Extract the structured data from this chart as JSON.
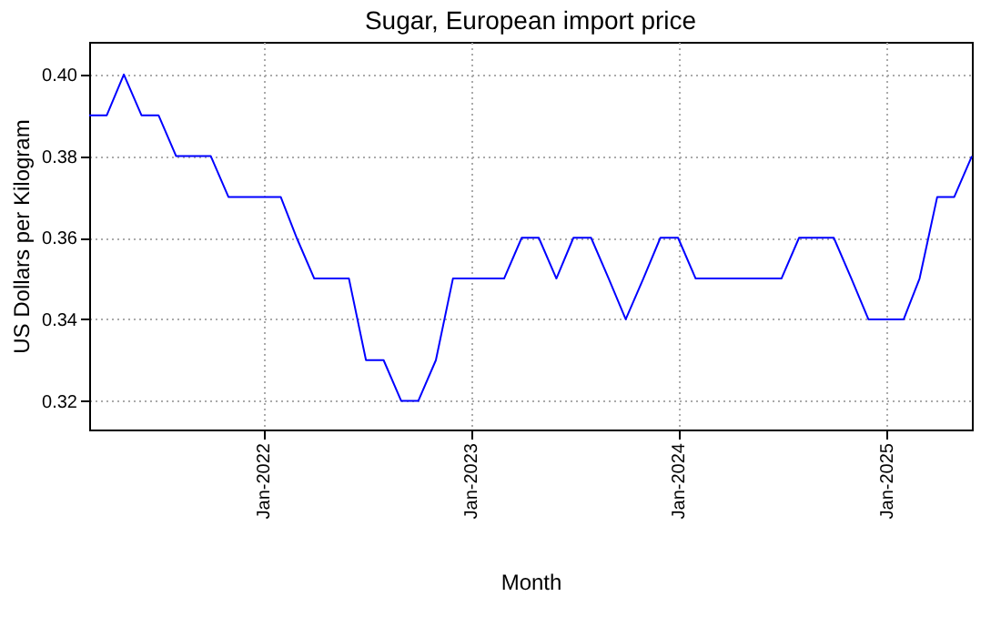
{
  "chart_data": {
    "type": "line",
    "title": "Sugar, European import price",
    "xlabel": "Month",
    "ylabel": "US Dollars per Kilogram",
    "x": [
      "2021-03",
      "2021-04",
      "2021-05",
      "2021-06",
      "2021-07",
      "2021-08",
      "2021-09",
      "2021-10",
      "2021-11",
      "2021-12",
      "2022-01",
      "2022-02",
      "2022-03",
      "2022-04",
      "2022-05",
      "2022-06",
      "2022-07",
      "2022-08",
      "2022-09",
      "2022-10",
      "2022-11",
      "2022-12",
      "2023-01",
      "2023-02",
      "2023-03",
      "2023-04",
      "2023-05",
      "2023-06",
      "2023-07",
      "2023-08",
      "2023-09",
      "2023-10",
      "2023-11",
      "2023-12",
      "2024-01",
      "2024-02",
      "2024-03",
      "2024-04",
      "2024-05",
      "2024-06",
      "2024-07",
      "2024-08",
      "2024-09",
      "2024-10",
      "2024-11",
      "2024-12",
      "2025-01",
      "2025-02",
      "2025-03",
      "2025-04",
      "2025-05",
      "2025-06"
    ],
    "series": [
      {
        "color": "#0000ff",
        "values": [
          0.39,
          0.39,
          0.4,
          0.39,
          0.39,
          0.38,
          0.38,
          0.38,
          0.37,
          0.37,
          0.37,
          0.37,
          0.36,
          0.35,
          0.35,
          0.35,
          0.33,
          0.33,
          0.32,
          0.32,
          0.33,
          0.35,
          0.35,
          0.35,
          0.35,
          0.36,
          0.36,
          0.35,
          0.36,
          0.36,
          0.35,
          0.34,
          0.35,
          0.36,
          0.36,
          0.35,
          0.35,
          0.35,
          0.35,
          0.35,
          0.35,
          0.36,
          0.36,
          0.36,
          0.35,
          0.34,
          0.34,
          0.34,
          0.35,
          0.37,
          0.37,
          0.38
        ]
      }
    ],
    "xlim": [
      "2021-03",
      "2025-06"
    ],
    "xticks": [
      {
        "value": "2022-01",
        "label": "Jan-2022"
      },
      {
        "value": "2023-01",
        "label": "Jan-2023"
      },
      {
        "value": "2024-01",
        "label": "Jan-2024"
      },
      {
        "value": "2025-01",
        "label": "Jan-2025"
      }
    ],
    "ylim": [
      0.313,
      0.408
    ],
    "yticks": [
      {
        "value": 0.32,
        "label": "0.32"
      },
      {
        "value": 0.34,
        "label": "0.34"
      },
      {
        "value": 0.36,
        "label": "0.36"
      },
      {
        "value": 0.38,
        "label": "0.38"
      },
      {
        "value": 0.4,
        "label": "0.40"
      }
    ],
    "grid": true,
    "marker": "none",
    "line_style": "solid"
  }
}
